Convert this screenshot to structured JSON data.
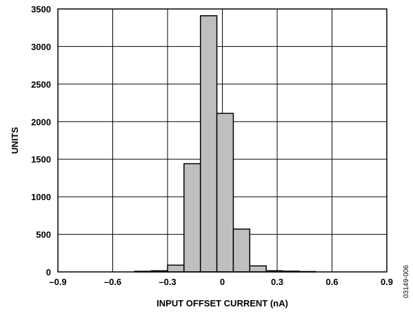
{
  "chart_data": {
    "type": "bar",
    "title": "",
    "xlabel": "INPUT OFFSET CURRENT (nA)",
    "ylabel": "UNITS",
    "xlim": [
      -0.9,
      0.9
    ],
    "ylim": [
      0,
      3500
    ],
    "x_ticks": [
      -0.9,
      -0.6,
      -0.3,
      0,
      0.3,
      0.6,
      0.9
    ],
    "x_tick_labels": [
      "–0.9",
      "–0.6",
      "–0.3",
      "0",
      "0.3",
      "0.6",
      "0.9"
    ],
    "y_ticks": [
      0,
      500,
      1000,
      1500,
      2000,
      2500,
      3000,
      3500
    ],
    "y_tick_labels": [
      "0",
      "500",
      "1000",
      "1500",
      "2000",
      "2500",
      "3000",
      "3500"
    ],
    "grid": true,
    "bin_width": 0.09,
    "bins": [
      {
        "x0": -0.48,
        "x1": -0.39,
        "value": 8
      },
      {
        "x0": -0.39,
        "x1": -0.3,
        "value": 15
      },
      {
        "x0": -0.3,
        "x1": -0.21,
        "value": 90
      },
      {
        "x0": -0.21,
        "x1": -0.12,
        "value": 1440
      },
      {
        "x0": -0.12,
        "x1": -0.03,
        "value": 3410
      },
      {
        "x0": -0.03,
        "x1": 0.06,
        "value": 2110
      },
      {
        "x0": 0.06,
        "x1": 0.15,
        "value": 570
      },
      {
        "x0": 0.15,
        "x1": 0.24,
        "value": 80
      },
      {
        "x0": 0.24,
        "x1": 0.33,
        "value": 15
      },
      {
        "x0": 0.33,
        "x1": 0.42,
        "value": 10
      },
      {
        "x0": 0.42,
        "x1": 0.51,
        "value": 5
      }
    ],
    "bar_fill": "#bfbfbf",
    "bar_stroke": "#000000"
  },
  "figure_id": "03149-006"
}
